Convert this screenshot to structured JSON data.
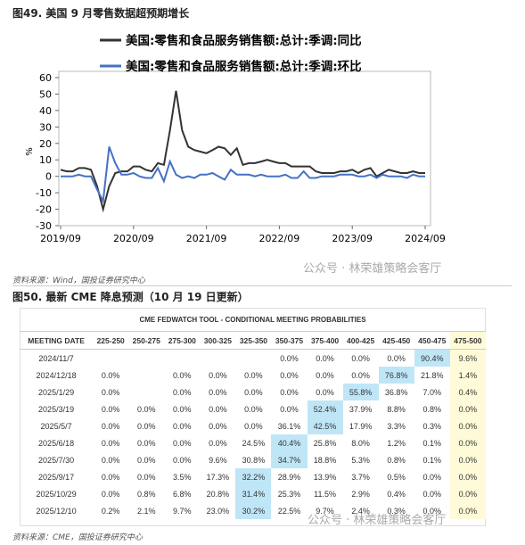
{
  "fig49_title": "图49. 美国 9 月零售数据超预期增长",
  "chart_data": {
    "type": "line",
    "y_label": "%",
    "x": [
      "2019/09",
      "2019/10",
      "2019/11",
      "2019/12",
      "2020/01",
      "2020/02",
      "2020/03",
      "2020/04",
      "2020/05",
      "2020/06",
      "2020/07",
      "2020/08",
      "2020/09",
      "2020/10",
      "2020/11",
      "2020/12",
      "2021/01",
      "2021/02",
      "2021/03",
      "2021/04",
      "2021/05",
      "2021/06",
      "2021/07",
      "2021/08",
      "2021/09",
      "2021/10",
      "2021/11",
      "2021/12",
      "2022/01",
      "2022/02",
      "2022/03",
      "2022/04",
      "2022/05",
      "2022/06",
      "2022/07",
      "2022/08",
      "2022/09",
      "2022/10",
      "2022/11",
      "2022/12",
      "2023/01",
      "2023/02",
      "2023/03",
      "2023/04",
      "2023/05",
      "2023/06",
      "2023/07",
      "2023/08",
      "2023/09",
      "2023/10",
      "2023/11",
      "2023/12",
      "2024/01",
      "2024/02",
      "2024/03",
      "2024/04",
      "2024/05",
      "2024/06",
      "2024/07",
      "2024/08",
      "2024/09"
    ],
    "series": [
      {
        "name": "美国:零售和食品服务销售额:总计:季调:同比",
        "color": "#333333",
        "values": [
          4,
          3,
          3,
          5,
          5,
          4,
          -6,
          -20,
          -6,
          2,
          3,
          3,
          6,
          6,
          4,
          3,
          8,
          7,
          28,
          52,
          28,
          18,
          16,
          15,
          14,
          16,
          18,
          17,
          13,
          17,
          7,
          8,
          8,
          9,
          10,
          9,
          8,
          8,
          6,
          6,
          6,
          6,
          3,
          2,
          2,
          2,
          3,
          3,
          4,
          2,
          4,
          5,
          0,
          2,
          4,
          3,
          2,
          2,
          3,
          2,
          2
        ]
      },
      {
        "name": "美国:零售和食品服务销售额:总计:季调:环比",
        "color": "#4472c4",
        "values": [
          0,
          0,
          0,
          1,
          0,
          0,
          -8,
          -15,
          18,
          8,
          1,
          1,
          2,
          0,
          -1,
          -1,
          5,
          -3,
          9,
          1,
          -1,
          0,
          -1,
          1,
          1,
          2,
          0,
          -2,
          4,
          1,
          1,
          1,
          0,
          1,
          0,
          0,
          0,
          1,
          -1,
          -1,
          3,
          -1,
          -1,
          0,
          0,
          0,
          1,
          1,
          1,
          0,
          0,
          1,
          -1,
          1,
          0,
          0,
          0,
          -1,
          1,
          0,
          0
        ]
      }
    ],
    "ylim": [
      -30,
      60
    ],
    "yticks": [
      -30,
      -20,
      -10,
      0,
      10,
      20,
      30,
      40,
      50,
      60
    ],
    "xticks": [
      "2019/09",
      "2020/09",
      "2021/09",
      "2022/09",
      "2023/09",
      "2024/09"
    ],
    "grid": false
  },
  "fig49_source": "资料来源：Wind，国投证券研究中心",
  "watermark": "公众号 · 林荣雄策略会客厅",
  "fig50_title": "图50. 最新 CME 降息预测（10 月 19 日更新）",
  "table": {
    "title": "CME FEDWATCH TOOL - CONDITIONAL MEETING PROBABILITIES",
    "columns": [
      "MEETING DATE",
      "225-250",
      "250-275",
      "275-300",
      "300-325",
      "325-350",
      "350-375",
      "375-400",
      "400-425",
      "425-450",
      "450-475",
      "475-500"
    ],
    "rows": [
      [
        "2024/11/7",
        null,
        null,
        null,
        null,
        null,
        "0.0%",
        "0.0%",
        "0.0%",
        "0.0%",
        "90.4%",
        "9.6%"
      ],
      [
        "2024/12/18",
        "0.0%",
        null,
        "0.0%",
        "0.0%",
        "0.0%",
        "0.0%",
        "0.0%",
        "0.0%",
        "76.8%",
        "21.8%",
        "1.4%"
      ],
      [
        "2025/1/29",
        "0.0%",
        null,
        "0.0%",
        "0.0%",
        "0.0%",
        "0.0%",
        "0.0%",
        "55.8%",
        "36.8%",
        "7.0%",
        "0.4%"
      ],
      [
        "2025/3/19",
        "0.0%",
        "0.0%",
        "0.0%",
        "0.0%",
        "0.0%",
        "0.0%",
        "52.4%",
        "37.9%",
        "8.8%",
        "0.8%",
        "0.0%"
      ],
      [
        "2025/5/7",
        "0.0%",
        "0.0%",
        "0.0%",
        "0.0%",
        "0.0%",
        "36.1%",
        "42.5%",
        "17.9%",
        "3.3%",
        "0.3%",
        "0.0%"
      ],
      [
        "2025/6/18",
        "0.0%",
        "0.0%",
        "0.0%",
        "0.0%",
        "24.5%",
        "40.4%",
        "25.8%",
        "8.0%",
        "1.2%",
        "0.1%",
        "0.0%"
      ],
      [
        "2025/7/30",
        "0.0%",
        "0.0%",
        "0.0%",
        "9.6%",
        "30.8%",
        "34.7%",
        "18.8%",
        "5.3%",
        "0.8%",
        "0.1%",
        "0.0%"
      ],
      [
        "2025/9/17",
        "0.0%",
        "0.0%",
        "3.5%",
        "17.3%",
        "32.2%",
        "28.9%",
        "13.9%",
        "3.7%",
        "0.5%",
        "0.0%",
        "0.0%"
      ],
      [
        "2025/10/29",
        "0.0%",
        "0.8%",
        "6.8%",
        "20.8%",
        "31.4%",
        "25.3%",
        "11.5%",
        "2.9%",
        "0.4%",
        "0.0%",
        "0.0%"
      ],
      [
        "2025/12/10",
        "0.2%",
        "2.1%",
        "9.7%",
        "23.0%",
        "30.2%",
        "22.5%",
        "9.7%",
        "2.4%",
        "0.3%",
        "0.0%",
        "0.0%"
      ]
    ]
  },
  "fig50_source": "资料来源：CME，国投证券研究中心"
}
